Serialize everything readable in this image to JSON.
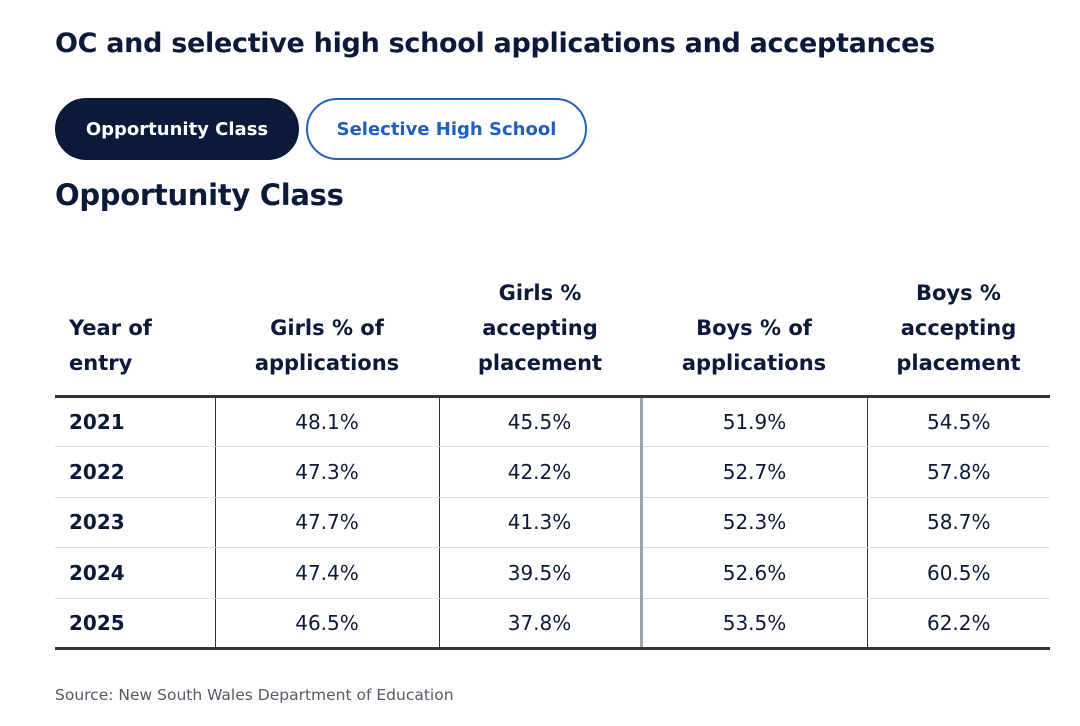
{
  "heading": "OC and selective high school applications and acceptances",
  "tabs": [
    {
      "label": "Opportunity Class",
      "active": true
    },
    {
      "label": "Selective High School",
      "active": false
    }
  ],
  "section_title": "Opportunity Class",
  "table": {
    "headers": [
      [
        "Year of",
        "entry"
      ],
      [
        "Girls % of",
        "applications"
      ],
      [
        "Girls %",
        "accepting",
        "placement"
      ],
      [
        "Boys % of",
        "applications"
      ],
      [
        "Boys %",
        "accepting",
        "placement"
      ]
    ],
    "rows": [
      [
        "2021",
        "48.1%",
        "45.5%",
        "51.9%",
        "54.5%"
      ],
      [
        "2022",
        "47.3%",
        "42.2%",
        "52.7%",
        "57.8%"
      ],
      [
        "2023",
        "47.7%",
        "41.3%",
        "52.3%",
        "58.7%"
      ],
      [
        "2024",
        "47.4%",
        "39.5%",
        "52.6%",
        "60.5%"
      ],
      [
        "2025",
        "46.5%",
        "37.8%",
        "53.5%",
        "62.2%"
      ]
    ]
  },
  "source": "Source: New South Wales Department of Education",
  "colors": {
    "navy": "#0c1a3a",
    "tab_link_blue": "#1f5fbf"
  }
}
